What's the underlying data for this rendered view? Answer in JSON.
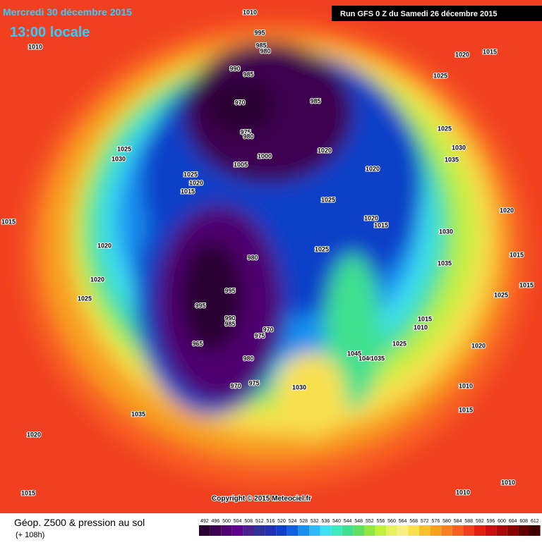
{
  "header": {
    "date": "Mercredi 30 décembre 2015",
    "time": "13:00 locale",
    "run": "Run GFS 0 Z du Samedi 26 décembre 2015"
  },
  "map": {
    "isobar_labels": [
      1010,
      995,
      985,
      980,
      1010,
      1020,
      1015,
      990,
      985,
      1025,
      985,
      970,
      1025,
      975,
      980,
      1030,
      1025,
      1020,
      1000,
      1030,
      1035,
      1005,
      1020,
      1025,
      1020,
      1015,
      1025,
      1020,
      1015,
      1020,
      1015,
      1030,
      1020,
      1025,
      980,
      1015,
      1035,
      1020,
      1015,
      995,
      1025,
      1025,
      995,
      1015,
      990,
      1010,
      985,
      970,
      975,
      1025,
      1020,
      965,
      1045,
      980,
      1040,
      1035,
      975,
      970,
      1030,
      1010,
      1015,
      1035,
      1020,
      1015,
      1010,
      1010
    ],
    "copyright": "Copyright © 2015 Meteociel.fr"
  },
  "legend": {
    "title": "Géop. Z500 & pression au sol",
    "lead": "(+ 108h)",
    "ticks": [
      492,
      496,
      500,
      504,
      508,
      512,
      516,
      520,
      524,
      528,
      532,
      536,
      540,
      544,
      548,
      552,
      556,
      560,
      564,
      568,
      572,
      576,
      580,
      584,
      588,
      592,
      596,
      600,
      604,
      608,
      612
    ],
    "colors": [
      "#2a0030",
      "#3c0050",
      "#500070",
      "#600090",
      "#4a2090",
      "#30309a",
      "#2030b0",
      "#1040c8",
      "#1060e0",
      "#1890f0",
      "#30b8f8",
      "#40e0f0",
      "#40e8c0",
      "#40e090",
      "#60e060",
      "#90e840",
      "#c0f040",
      "#e8f060",
      "#f8f080",
      "#f8e050",
      "#f8c030",
      "#f8a020",
      "#f88020",
      "#f86020",
      "#f04020",
      "#e02010",
      "#c81010",
      "#a80808",
      "#880000",
      "#600000",
      "#400000"
    ]
  }
}
